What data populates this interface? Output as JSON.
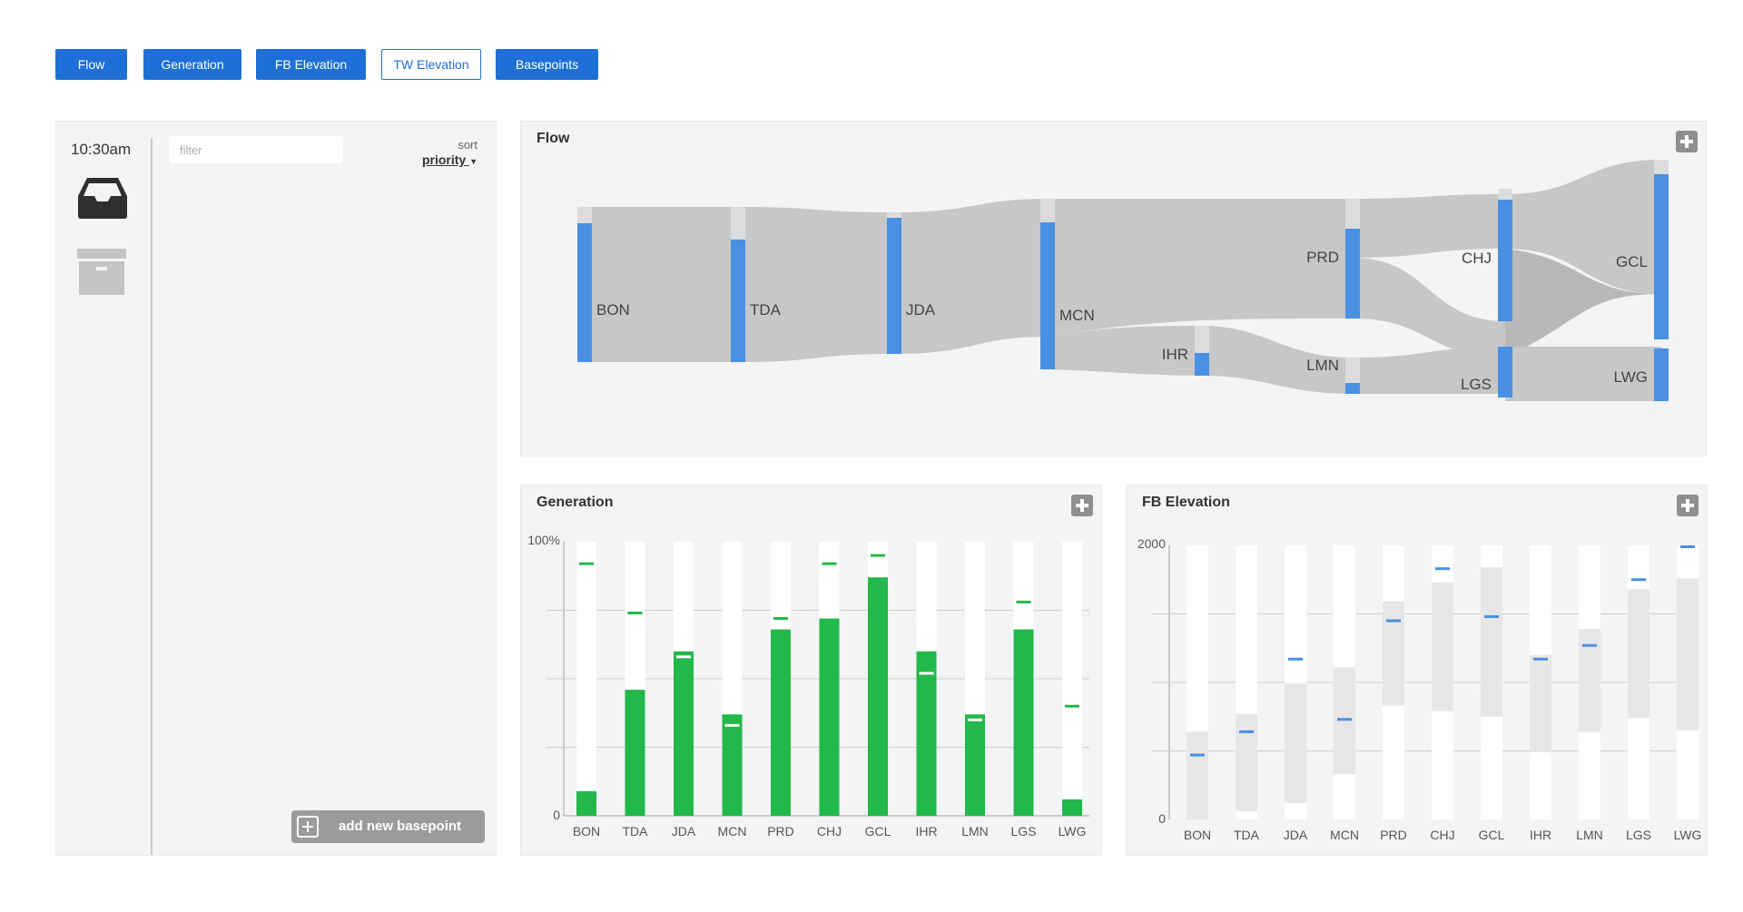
{
  "tabs": [
    {
      "label": "Flow",
      "active": true
    },
    {
      "label": "Generation",
      "active": true
    },
    {
      "label": "FB Elevation",
      "active": true
    },
    {
      "label": "TW Elevation",
      "active": false
    },
    {
      "label": "Basepoints",
      "active": true
    }
  ],
  "sidebar": {
    "time": "10:30am",
    "filter_placeholder": "filter",
    "sort_label": "sort",
    "sort_value": "priority",
    "add_button_label": "add new basepoint"
  },
  "colors": {
    "accent_blue": "#1e6fd6",
    "bar_blue": "#4a90e2",
    "bar_green": "#22b94a",
    "flow_gray": "#c6c7c8"
  },
  "flow": {
    "title": "Flow",
    "nodes": [
      "BON",
      "TDA",
      "JDA",
      "MCN",
      "IHR",
      "PRD",
      "LMN",
      "CHJ",
      "LGS",
      "GCL",
      "LWG"
    ]
  },
  "chart_data": [
    {
      "type": "bar",
      "title": "Generation",
      "categories": [
        "BON",
        "TDA",
        "JDA",
        "MCN",
        "PRD",
        "CHJ",
        "GCL",
        "IHR",
        "LMN",
        "LGS",
        "LWG"
      ],
      "y_labels": [
        "100%",
        "0"
      ],
      "ylim": [
        0,
        100
      ],
      "values": [
        9,
        46,
        60,
        37,
        68,
        72,
        87,
        60,
        37,
        68,
        6
      ],
      "target_markers": [
        92,
        74,
        58,
        33,
        72,
        92,
        95,
        52,
        35,
        78,
        40
      ],
      "grid": true
    },
    {
      "type": "bar",
      "title": "FB Elevation",
      "categories": [
        "BON",
        "TDA",
        "JDA",
        "MCN",
        "PRD",
        "CHJ",
        "GCL",
        "IHR",
        "LMN",
        "LGS",
        "LWG"
      ],
      "y_labels": [
        "2000",
        "0"
      ],
      "ylim": [
        0,
        2000
      ],
      "range_low": [
        0,
        60,
        120,
        330,
        830,
        790,
        750,
        490,
        640,
        740,
        650
      ],
      "range_high": [
        640,
        770,
        990,
        1110,
        1590,
        1730,
        1840,
        1200,
        1390,
        1680,
        1760
      ],
      "markers": [
        470,
        640,
        1170,
        730,
        1450,
        1830,
        1480,
        1170,
        1270,
        1750,
        1990
      ],
      "grid": true
    }
  ]
}
